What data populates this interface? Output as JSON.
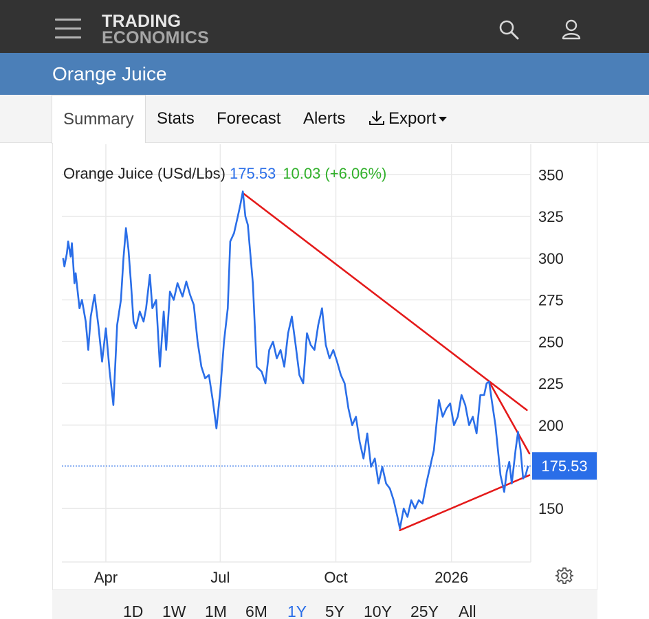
{
  "header": {
    "logo_line1": "TRADING",
    "logo_line2": "ECONOMICS",
    "menu_icon": "hamburger-menu-icon",
    "search_icon": "search-icon",
    "user_icon": "user-icon"
  },
  "page": {
    "title": "Orange Juice"
  },
  "tabs": [
    {
      "label": "Summary",
      "active": true
    },
    {
      "label": "Stats",
      "active": false
    },
    {
      "label": "Forecast",
      "active": false
    },
    {
      "label": "Alerts",
      "active": false
    },
    {
      "label": "Export",
      "active": false,
      "icon": "download-icon"
    }
  ],
  "legend": {
    "name": "Orange Juice (USd/Lbs)",
    "price": "175.53",
    "change": "10.03 (+6.06%)"
  },
  "ranges": [
    "1D",
    "1W",
    "1M",
    "6M",
    "1Y",
    "5Y",
    "10Y",
    "25Y",
    "All"
  ],
  "selected_range": "1Y",
  "settings_icon": "gear-icon",
  "colors": {
    "line": "#2a6ee8",
    "trendline": "#e41a1a",
    "price_tag": "#2a6ee8",
    "change": "#31b02b",
    "header": "#333333",
    "titlebar": "#4b7fb8"
  },
  "chart_data": {
    "type": "line",
    "title": "Orange Juice (USd/Lbs)",
    "last_value_label": "175.53",
    "last_value": 175.53,
    "ylim": [
      118,
      360
    ],
    "y_ticks": [
      150,
      200,
      225,
      250,
      275,
      300,
      325,
      350
    ],
    "x_ticks": [
      {
        "label": "Apr",
        "x": "2025-04-01"
      },
      {
        "label": "Jul",
        "x": "2025-07-01"
      },
      {
        "label": "Oct",
        "x": "2025-10-01"
      },
      {
        "label": "2026",
        "x": "2026-01-01"
      }
    ],
    "xlim": [
      "2025-02-25",
      "2026-03-04"
    ],
    "grid": true,
    "series": [
      {
        "points": [
          [
            "2025-02-26",
            300
          ],
          [
            "2025-02-27",
            295
          ],
          [
            "2025-03-01",
            303
          ],
          [
            "2025-03-02",
            310
          ],
          [
            "2025-03-04",
            301
          ],
          [
            "2025-03-05",
            309
          ],
          [
            "2025-03-07",
            285
          ],
          [
            "2025-03-08",
            291
          ],
          [
            "2025-03-11",
            270
          ],
          [
            "2025-03-13",
            275
          ],
          [
            "2025-03-16",
            262
          ],
          [
            "2025-03-18",
            245
          ],
          [
            "2025-03-20",
            265
          ],
          [
            "2025-03-23",
            278
          ],
          [
            "2025-03-26",
            260
          ],
          [
            "2025-03-29",
            238
          ],
          [
            "2025-04-01",
            258
          ],
          [
            "2025-04-04",
            232
          ],
          [
            "2025-04-07",
            212
          ],
          [
            "2025-04-10",
            260
          ],
          [
            "2025-04-13",
            275
          ],
          [
            "2025-04-15",
            300
          ],
          [
            "2025-04-17",
            318
          ],
          [
            "2025-04-19",
            305
          ],
          [
            "2025-04-21",
            285
          ],
          [
            "2025-04-23",
            262
          ],
          [
            "2025-04-25",
            258
          ],
          [
            "2025-04-28",
            268
          ],
          [
            "2025-05-01",
            262
          ],
          [
            "2025-05-03",
            270
          ],
          [
            "2025-05-06",
            290
          ],
          [
            "2025-05-08",
            270
          ],
          [
            "2025-05-11",
            275
          ],
          [
            "2025-05-14",
            235
          ],
          [
            "2025-05-17",
            268
          ],
          [
            "2025-05-19",
            245
          ],
          [
            "2025-05-22",
            280
          ],
          [
            "2025-05-25",
            275
          ],
          [
            "2025-05-28",
            285
          ],
          [
            "2025-06-01",
            277
          ],
          [
            "2025-06-04",
            286
          ],
          [
            "2025-06-07",
            278
          ],
          [
            "2025-06-10",
            272
          ],
          [
            "2025-06-13",
            250
          ],
          [
            "2025-06-16",
            235
          ],
          [
            "2025-06-19",
            228
          ],
          [
            "2025-06-22",
            230
          ],
          [
            "2025-06-25",
            215
          ],
          [
            "2025-06-28",
            198
          ],
          [
            "2025-07-01",
            220
          ],
          [
            "2025-07-04",
            250
          ],
          [
            "2025-07-07",
            270
          ],
          [
            "2025-07-09",
            310
          ],
          [
            "2025-07-12",
            315
          ],
          [
            "2025-07-15",
            325
          ],
          [
            "2025-07-17",
            332
          ],
          [
            "2025-07-19",
            340
          ],
          [
            "2025-07-21",
            325
          ],
          [
            "2025-07-23",
            320
          ],
          [
            "2025-07-27",
            285
          ],
          [
            "2025-07-30",
            235
          ],
          [
            "2025-08-03",
            232
          ],
          [
            "2025-08-06",
            225
          ],
          [
            "2025-08-09",
            245
          ],
          [
            "2025-08-12",
            250
          ],
          [
            "2025-08-15",
            240
          ],
          [
            "2025-08-18",
            245
          ],
          [
            "2025-08-21",
            235
          ],
          [
            "2025-08-24",
            255
          ],
          [
            "2025-08-27",
            265
          ],
          [
            "2025-08-30",
            248
          ],
          [
            "2025-09-02",
            230
          ],
          [
            "2025-09-05",
            225
          ],
          [
            "2025-09-08",
            255
          ],
          [
            "2025-09-11",
            248
          ],
          [
            "2025-09-14",
            245
          ],
          [
            "2025-09-17",
            260
          ],
          [
            "2025-09-20",
            270
          ],
          [
            "2025-09-23",
            248
          ],
          [
            "2025-09-26",
            240
          ],
          [
            "2025-09-29",
            245
          ],
          [
            "2025-10-02",
            238
          ],
          [
            "2025-10-05",
            230
          ],
          [
            "2025-10-08",
            225
          ],
          [
            "2025-10-11",
            210
          ],
          [
            "2025-10-14",
            200
          ],
          [
            "2025-10-17",
            205
          ],
          [
            "2025-10-20",
            190
          ],
          [
            "2025-10-23",
            180
          ],
          [
            "2025-10-26",
            195
          ],
          [
            "2025-10-29",
            175
          ],
          [
            "2025-11-01",
            180
          ],
          [
            "2025-11-04",
            165
          ],
          [
            "2025-11-07",
            175
          ],
          [
            "2025-11-10",
            165
          ],
          [
            "2025-11-13",
            162
          ],
          [
            "2025-11-16",
            155
          ],
          [
            "2025-11-19",
            145
          ],
          [
            "2025-11-21",
            138
          ],
          [
            "2025-11-24",
            150
          ],
          [
            "2025-11-27",
            145
          ],
          [
            "2025-11-30",
            155
          ],
          [
            "2025-12-03",
            150
          ],
          [
            "2025-12-06",
            155
          ],
          [
            "2025-12-09",
            153
          ],
          [
            "2025-12-12",
            165
          ],
          [
            "2025-12-15",
            175
          ],
          [
            "2025-12-18",
            185
          ],
          [
            "2025-12-20",
            200
          ],
          [
            "2025-12-22",
            215
          ],
          [
            "2025-12-25",
            205
          ],
          [
            "2025-12-28",
            210
          ],
          [
            "2025-12-31",
            213
          ],
          [
            "2026-01-03",
            200
          ],
          [
            "2026-01-06",
            205
          ],
          [
            "2026-01-09",
            218
          ],
          [
            "2026-01-12",
            212
          ],
          [
            "2026-01-15",
            200
          ],
          [
            "2026-01-18",
            205
          ],
          [
            "2026-01-21",
            195
          ],
          [
            "2026-01-24",
            218
          ],
          [
            "2026-01-27",
            218
          ],
          [
            "2026-01-29",
            225
          ],
          [
            "2026-01-31",
            226
          ],
          [
            "2026-02-02",
            215
          ],
          [
            "2026-02-05",
            200
          ],
          [
            "2026-02-07",
            185
          ],
          [
            "2026-02-09",
            170
          ],
          [
            "2026-02-12",
            160
          ],
          [
            "2026-02-14",
            172
          ],
          [
            "2026-02-16",
            178
          ],
          [
            "2026-02-18",
            165
          ],
          [
            "2026-02-21",
            185
          ],
          [
            "2026-02-23",
            196
          ],
          [
            "2026-02-25",
            185
          ],
          [
            "2026-02-27",
            168
          ],
          [
            "2026-03-01",
            170
          ],
          [
            "2026-03-03",
            175.53
          ]
        ]
      }
    ],
    "trendlines": [
      {
        "from": [
          "2025-07-19",
          339
        ],
        "to": [
          "2026-03-02",
          209
        ]
      },
      {
        "from": [
          "2026-01-31",
          226
        ],
        "to": [
          "2026-03-04",
          183
        ]
      },
      {
        "from": [
          "2025-11-21",
          137
        ],
        "to": [
          "2026-03-04",
          170
        ]
      }
    ]
  }
}
